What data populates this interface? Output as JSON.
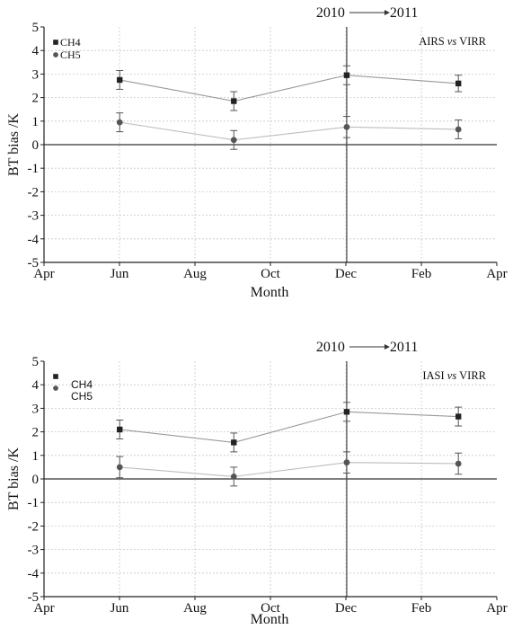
{
  "chart_data": [
    {
      "type": "line",
      "period_left": "2010",
      "period_right": "2011",
      "annotation_prefix": "AIRS",
      "annotation_vs": "vs",
      "annotation_suffix": "VIRR",
      "xlabel": "Month",
      "ylabel": "BT bias /K",
      "x_ticks": [
        "Apr",
        "Jun",
        "Aug",
        "Oct",
        "Dec",
        "Feb",
        "Apr"
      ],
      "y_ticks": [
        "5",
        "4",
        "3",
        "2",
        "1",
        "0",
        "-1",
        "-2",
        "-3",
        "-4",
        "-5"
      ],
      "ylim": [
        -5,
        5
      ],
      "xlim": [
        "2010-04-01",
        "2011-04-01"
      ],
      "vertical_marker": "2010-12-01",
      "legend_placement": "top-left",
      "grid": true,
      "series": [
        {
          "name": "CH4",
          "marker": "square",
          "color": "#222222",
          "line_color": "#9a9a9a",
          "x": [
            "2010-06-01",
            "2010-09-01",
            "2010-12-01",
            "2011-03-01"
          ],
          "y": [
            2.75,
            1.85,
            2.95,
            2.6
          ],
          "err": [
            0.4,
            0.4,
            0.4,
            0.35
          ]
        },
        {
          "name": "CH5",
          "marker": "circle",
          "color": "#555555",
          "line_color": "#bdbdbd",
          "x": [
            "2010-06-01",
            "2010-09-01",
            "2010-12-01",
            "2011-03-01"
          ],
          "y": [
            0.95,
            0.2,
            0.75,
            0.65
          ],
          "err": [
            0.4,
            0.4,
            0.45,
            0.4
          ]
        }
      ]
    },
    {
      "type": "line",
      "period_left": "2010",
      "period_right": "2011",
      "annotation_prefix": "IASI",
      "annotation_vs": "vs",
      "annotation_suffix": "VIRR",
      "xlabel": "Month",
      "ylabel": "BT bias /K",
      "x_ticks": [
        "Apr",
        "Jun",
        "Aug",
        "Oct",
        "Dec",
        "Feb",
        "Apr"
      ],
      "y_ticks": [
        "5",
        "4",
        "3",
        "2",
        "1",
        "0",
        "-1",
        "-2",
        "-3",
        "-4",
        "-5"
      ],
      "ylim": [
        -5,
        5
      ],
      "xlim": [
        "2010-04-01",
        "2011-04-01"
      ],
      "vertical_marker": "2010-12-01",
      "legend_placement": "top-left",
      "grid": true,
      "series": [
        {
          "name": "CH4",
          "marker": "square",
          "color": "#222222",
          "line_color": "#9a9a9a",
          "x": [
            "2010-06-01",
            "2010-09-01",
            "2010-12-01",
            "2011-03-01"
          ],
          "y": [
            2.1,
            1.55,
            2.85,
            2.65
          ],
          "err": [
            0.4,
            0.4,
            0.4,
            0.4
          ]
        },
        {
          "name": "CH5",
          "marker": "circle",
          "color": "#555555",
          "line_color": "#bdbdbd",
          "x": [
            "2010-06-01",
            "2010-09-01",
            "2010-12-01",
            "2011-03-01"
          ],
          "y": [
            0.5,
            0.1,
            0.7,
            0.65
          ],
          "err": [
            0.45,
            0.4,
            0.45,
            0.45
          ]
        }
      ]
    }
  ]
}
